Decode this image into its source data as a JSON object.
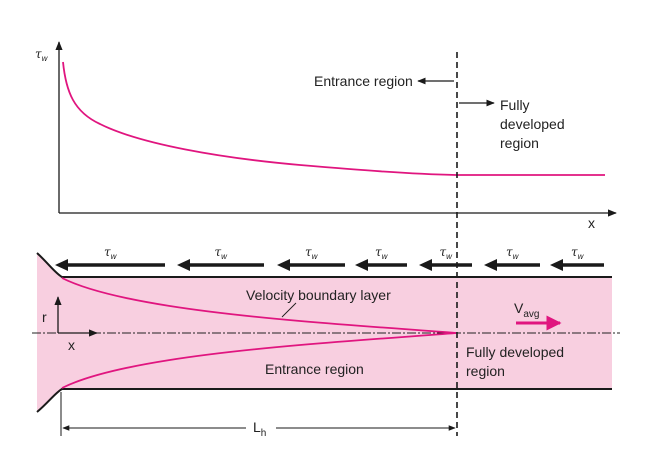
{
  "colors": {
    "curve": "#e0157f",
    "pipe_fill": "#f8cfe0",
    "line": "#1a1a1a",
    "velocity_arrow": "#e0157f"
  },
  "top_graph": {
    "y_axis_symbol": "τ",
    "y_axis_subscript": "w",
    "x_axis_label": "x",
    "entrance_label": "Entrance region",
    "fully_developed_lines": [
      "Fully",
      "developed",
      "region"
    ]
  },
  "pipe": {
    "wall_stress_symbol": "τ",
    "wall_stress_subscript": "w",
    "wall_stress_arrow_count": 7,
    "r_label": "r",
    "x_label": "x",
    "velocity_bl_label": "Velocity boundary layer",
    "entrance_label": "Entrance region",
    "fully_developed_lines": [
      "Fully developed",
      "region"
    ],
    "vavg_main": "V",
    "vavg_sub": "avg",
    "lh_main": "L",
    "lh_sub": "h"
  }
}
